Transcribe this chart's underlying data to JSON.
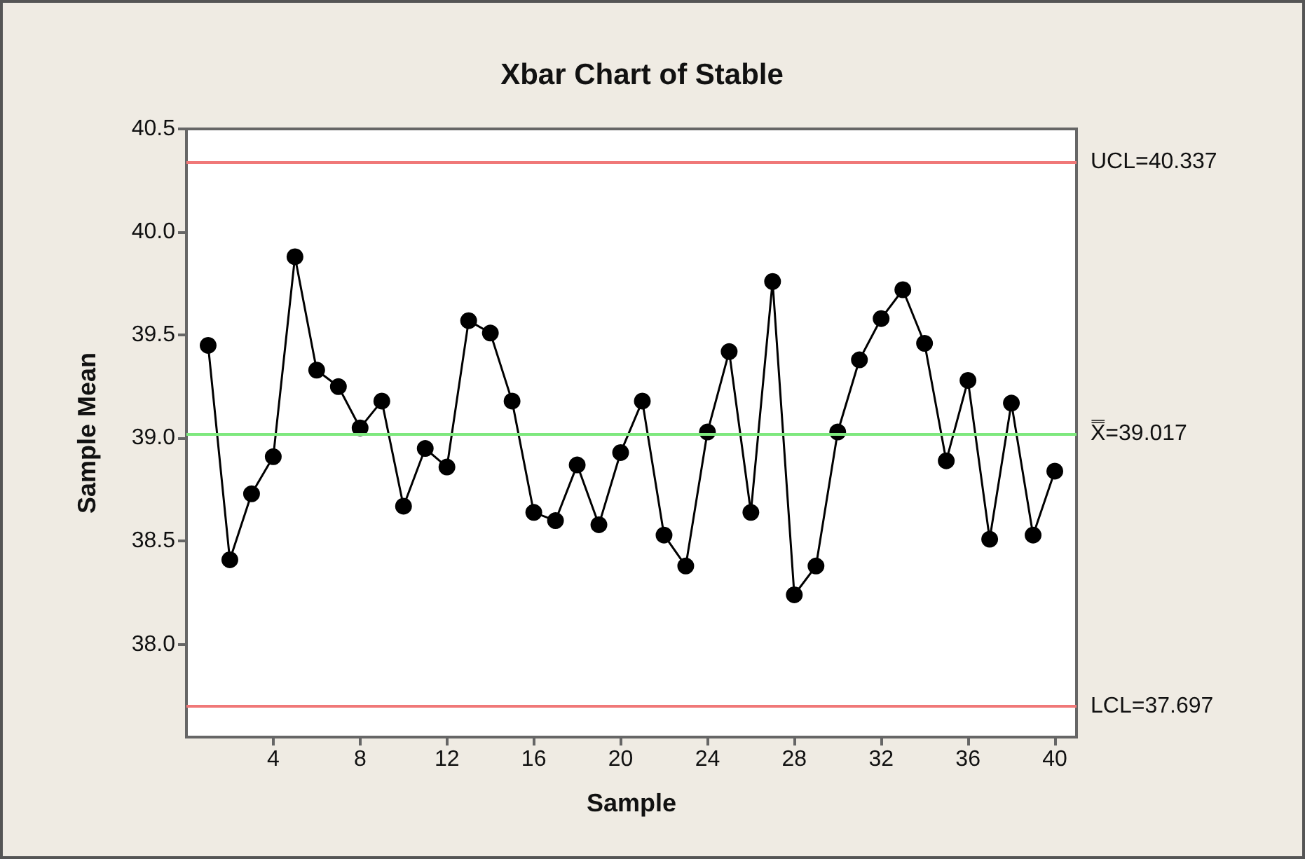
{
  "chart_data": {
    "type": "line",
    "title": "Xbar Chart of Stable",
    "xlabel": "Sample",
    "ylabel": "Sample Mean",
    "x": [
      1,
      2,
      3,
      4,
      5,
      6,
      7,
      8,
      9,
      10,
      11,
      12,
      13,
      14,
      15,
      16,
      17,
      18,
      19,
      20,
      21,
      22,
      23,
      24,
      25,
      26,
      27,
      28,
      29,
      30,
      31,
      32,
      33,
      34,
      35,
      36,
      37,
      38,
      39,
      40
    ],
    "series": [
      {
        "color": "#000000",
        "values": [
          39.45,
          38.41,
          38.73,
          38.91,
          39.88,
          39.33,
          39.25,
          39.05,
          39.18,
          38.67,
          38.95,
          38.86,
          39.57,
          39.51,
          39.18,
          38.64,
          38.6,
          38.87,
          38.58,
          38.93,
          39.18,
          38.53,
          38.38,
          39.03,
          39.42,
          38.64,
          39.76,
          38.24,
          38.38,
          39.03,
          39.38,
          39.58,
          39.72,
          39.46,
          38.89,
          39.28,
          38.51,
          39.17,
          38.53,
          38.84
        ]
      }
    ],
    "xlim": [
      0,
      41
    ],
    "xticks": [
      4,
      8,
      12,
      16,
      20,
      24,
      28,
      32,
      36,
      40
    ],
    "ylim": [
      37.55,
      40.5
    ],
    "yticks": [
      {
        "value": 38,
        "label": "38.0"
      },
      {
        "value": 38.5,
        "label": "38.5"
      },
      {
        "value": 39,
        "label": "39.0"
      },
      {
        "value": 39.5,
        "label": "39.5"
      },
      {
        "value": 40,
        "label": "40.0"
      },
      {
        "value": 40.5,
        "label": "40.5"
      }
    ],
    "ref_lines": [
      {
        "axis": "y",
        "value": 40.337,
        "label": "UCL=40.337",
        "color": "#f07878"
      },
      {
        "axis": "y",
        "value": 39.017,
        "label": "X̿=39.017",
        "color": "#7ee87e"
      },
      {
        "axis": "y",
        "value": 37.697,
        "label": "LCL=37.697",
        "color": "#f07878"
      }
    ],
    "marker": "circle",
    "line_style": "solid",
    "grid": false
  }
}
